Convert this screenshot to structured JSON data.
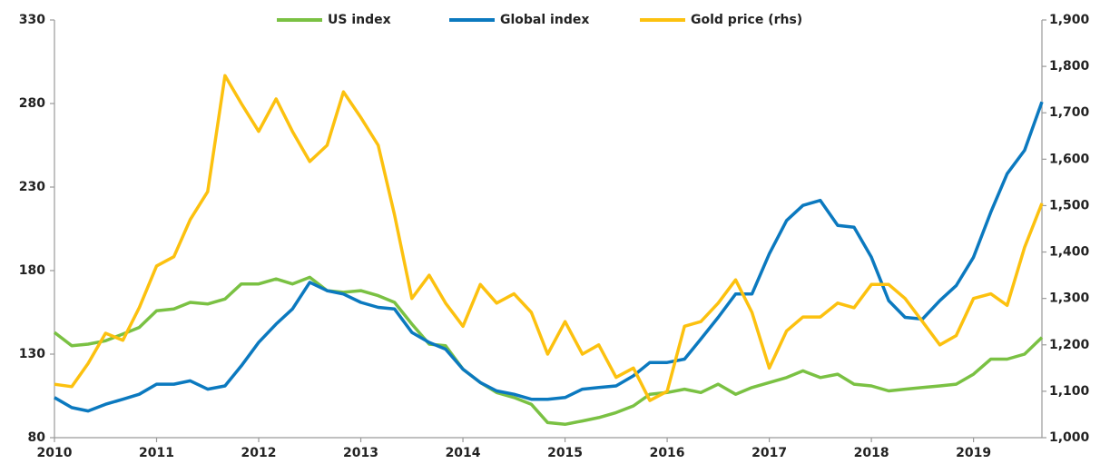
{
  "chart_data": {
    "type": "line",
    "x": [
      2010,
      2010.17,
      2010.33,
      2010.5,
      2010.67,
      2010.83,
      2011,
      2011.17,
      2011.33,
      2011.5,
      2011.67,
      2011.83,
      2012,
      2012.17,
      2012.33,
      2012.5,
      2012.67,
      2012.83,
      2013,
      2013.17,
      2013.33,
      2013.5,
      2013.67,
      2013.83,
      2014,
      2014.17,
      2014.33,
      2014.5,
      2014.67,
      2014.83,
      2015,
      2015.17,
      2015.33,
      2015.5,
      2015.67,
      2015.83,
      2016,
      2016.17,
      2016.33,
      2016.5,
      2016.67,
      2016.83,
      2017,
      2017.17,
      2017.33,
      2017.5,
      2017.67,
      2017.83,
      2018,
      2018.17,
      2018.33,
      2018.5,
      2018.67,
      2018.83,
      2019,
      2019.17,
      2019.33,
      2019.5,
      2019.67
    ],
    "series": [
      {
        "name": "US index",
        "color": "#7ac143",
        "values": [
          143,
          135,
          136,
          138,
          142,
          146,
          156,
          157,
          161,
          160,
          163,
          172,
          172,
          175,
          172,
          176,
          168,
          167,
          168,
          165,
          161,
          148,
          136,
          135,
          121,
          113,
          107,
          104,
          100,
          89,
          88,
          90,
          92,
          95,
          99,
          106,
          107,
          109,
          107,
          112,
          106,
          110,
          113,
          116,
          120,
          116,
          118,
          112,
          111,
          108,
          109,
          110,
          111,
          112,
          118,
          127,
          127,
          130,
          140
        ]
      },
      {
        "name": "Global index",
        "color": "#0b79bf",
        "values": [
          104,
          98,
          96,
          100,
          103,
          106,
          112,
          112,
          114,
          109,
          111,
          123,
          137,
          148,
          157,
          173,
          168,
          166,
          161,
          158,
          157,
          143,
          137,
          133,
          121,
          113,
          108,
          106,
          103,
          103,
          104,
          109,
          110,
          111,
          117,
          125,
          125,
          127,
          139,
          152,
          166,
          166,
          190,
          210,
          219,
          222,
          207,
          206,
          188,
          162,
          152,
          151,
          162,
          171,
          188,
          215,
          238,
          252,
          281
        ]
      },
      {
        "name": "Gold price (rhs)",
        "color": "#fcc10f",
        "axis": "y2",
        "values": [
          1115,
          1110,
          1160,
          1225,
          1210,
          1280,
          1370,
          1390,
          1470,
          1530,
          1780,
          1720,
          1660,
          1730,
          1660,
          1595,
          1630,
          1745,
          1690,
          1630,
          1480,
          1300,
          1350,
          1290,
          1240,
          1330,
          1290,
          1310,
          1270,
          1180,
          1250,
          1180,
          1200,
          1130,
          1150,
          1080,
          1100,
          1240,
          1250,
          1290,
          1340,
          1270,
          1150,
          1230,
          1260,
          1260,
          1290,
          1280,
          1330,
          1330,
          1300,
          1250,
          1200,
          1220,
          1300,
          1310,
          1285,
          1410,
          1505
        ]
      }
    ],
    "xlim": [
      2010,
      2019.67
    ],
    "xticks": [
      2010,
      2011,
      2012,
      2013,
      2014,
      2015,
      2016,
      2017,
      2018,
      2019
    ],
    "ylim": [
      80,
      330
    ],
    "yticks": [
      80,
      130,
      180,
      230,
      280,
      330
    ],
    "y2lim": [
      1000,
      1900
    ],
    "y2ticks": [
      {
        "value": 1000,
        "label": "1,000"
      },
      {
        "value": 1100,
        "label": "1,100"
      },
      {
        "value": 1200,
        "label": "1,200"
      },
      {
        "value": 1300,
        "label": "1,300"
      },
      {
        "value": 1400,
        "label": "1,400"
      },
      {
        "value": 1500,
        "label": "1,500"
      },
      {
        "value": 1600,
        "label": "1,600"
      },
      {
        "value": 1700,
        "label": "1,700"
      },
      {
        "value": 1800,
        "label": "1,800"
      },
      {
        "value": 1900,
        "label": "1,900"
      }
    ],
    "legend": "top"
  }
}
